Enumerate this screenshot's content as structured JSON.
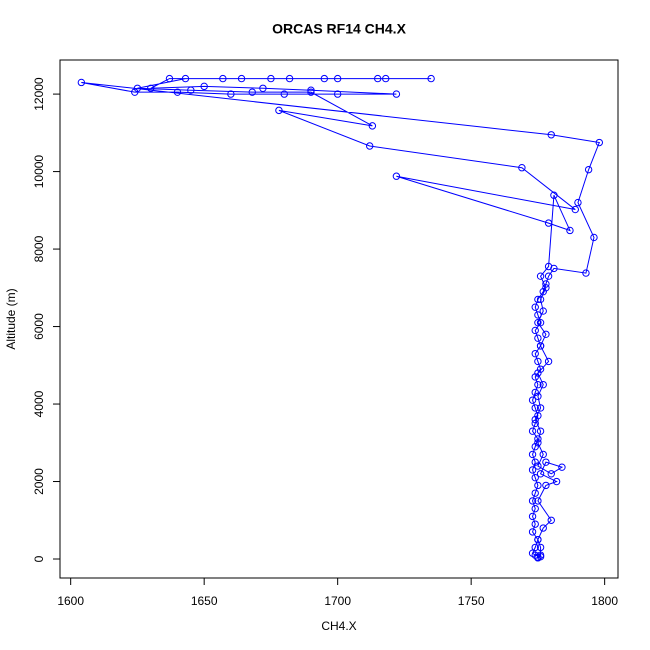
{
  "chart_data": {
    "type": "line",
    "title": "ORCAS RF14 CH4.X",
    "x_label": "CH4.X",
    "y_label": "Altitude (m)",
    "color": "#0000ff",
    "marker": "circle",
    "x": [
      1775,
      1776,
      1774,
      1773,
      1774,
      1775,
      1773,
      1774,
      1773,
      1774,
      1773,
      1774,
      1775,
      1774,
      1773,
      1774,
      1773,
      1774,
      1775,
      1773,
      1774,
      1775,
      1774,
      1773,
      1774,
      1775,
      1774,
      1776,
      1775,
      1774,
      1776,
      1775,
      1774,
      1776,
      1775,
      1774,
      1775,
      1777,
      1778,
      1779,
      1781,
      1793,
      1796,
      1790,
      1794,
      1798,
      1780,
      1604,
      1624,
      1640,
      1660,
      1680,
      1700,
      1722,
      1690,
      1672,
      1650,
      1630,
      1637,
      1657,
      1675,
      1695,
      1715,
      1735,
      1718,
      1700,
      1682,
      1664,
      1643,
      1625,
      1645,
      1668,
      1690,
      1713,
      1678,
      1712,
      1769,
      1789,
      1722,
      1779,
      1787,
      1781,
      1779,
      1776,
      1778,
      1776,
      1777,
      1775,
      1778,
      1776,
      1779,
      1775,
      1777,
      1775,
      1776,
      1774,
      1776,
      1775,
      1777,
      1775,
      1780,
      1784,
      1778,
      1776,
      1782,
      1778,
      1775,
      1780,
      1777,
      1775,
      1776,
      1776,
      1775
    ],
    "values": [
      30,
      60,
      100,
      150,
      300,
      500,
      700,
      900,
      1100,
      1300,
      1500,
      1700,
      1900,
      2100,
      2300,
      2500,
      2700,
      2900,
      3100,
      3300,
      3500,
      3700,
      3900,
      4100,
      4300,
      4500,
      4700,
      4900,
      5100,
      5300,
      5500,
      5700,
      5900,
      6100,
      6300,
      6500,
      6700,
      6900,
      7100,
      7300,
      7500,
      7380,
      8300,
      9200,
      10050,
      10750,
      10950,
      12300,
      12050,
      12050,
      12000,
      12000,
      12000,
      12000,
      12100,
      12150,
      12200,
      12150,
      12400,
      12400,
      12400,
      12400,
      12400,
      12400,
      12400,
      12400,
      12400,
      12400,
      12400,
      12150,
      12100,
      12050,
      12050,
      11180,
      11580,
      10660,
      10100,
      9020,
      9880,
      8670,
      8480,
      9390,
      7550,
      7300,
      7000,
      6700,
      6400,
      6100,
      5800,
      5500,
      5100,
      4800,
      4500,
      4200,
      3900,
      3600,
      3300,
      3000,
      2700,
      2400,
      2200,
      2370,
      2500,
      2200,
      2000,
      1900,
      1500,
      1000,
      800,
      500,
      300,
      100,
      50
    ],
    "xlim": [
      1596,
      1805
    ],
    "ylim": [
      -490,
      12880
    ],
    "xticks": [
      1600,
      1650,
      1700,
      1750,
      1800
    ],
    "yticks": [
      0,
      2000,
      4000,
      6000,
      8000,
      10000,
      12000
    ]
  }
}
